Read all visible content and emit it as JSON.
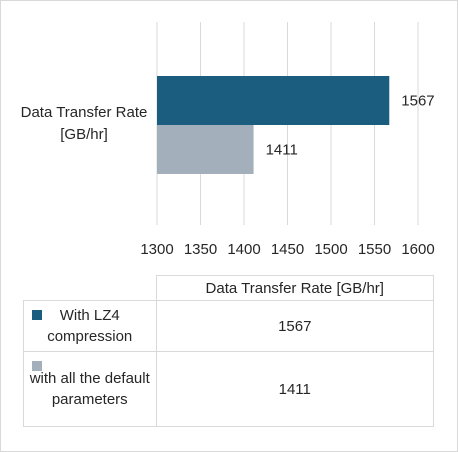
{
  "chart_data": {
    "type": "bar",
    "orientation": "horizontal",
    "categories": [
      "Data Transfer Rate [GB/hr]"
    ],
    "series": [
      {
        "name": "With LZ4 compression",
        "values": [
          1567
        ],
        "color": "#1b5d7e"
      },
      {
        "name": "with all the default parameters",
        "values": [
          1411
        ],
        "color": "#a3b0bb"
      }
    ],
    "xlim": [
      1300,
      1600
    ],
    "xticks": [
      1300,
      1350,
      1400,
      1450,
      1500,
      1550,
      1600
    ],
    "grid": true,
    "data_table": {
      "header": "Data Transfer Rate [GB/hr]",
      "rows": [
        {
          "label": "With LZ4 compression",
          "value": "1567"
        },
        {
          "label": "with all the default parameters",
          "value": "1411"
        }
      ]
    }
  }
}
